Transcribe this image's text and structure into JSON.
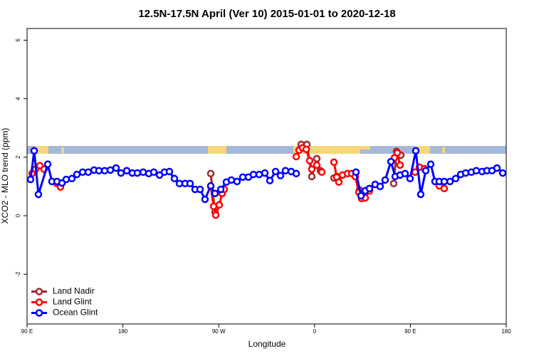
{
  "chart_data": {
    "type": "line",
    "title": "12.5N-17.5N April (Ver 10)   2015-01-01 to 2020-12-18",
    "x_label": "Longitude",
    "y_label": "XCO2 - MLO trend (ppm)",
    "xlim": [
      90,
      540
    ],
    "ylim": [
      -3.7,
      6.4
    ],
    "xticks": [
      {
        "value": 90,
        "label": "90 E"
      },
      180,
      {
        "value": 270,
        "label": "90 W"
      },
      {
        "value": 360,
        "label": "0"
      },
      {
        "value": 450,
        "label": "90 E"
      },
      {
        "value": 540,
        "label": "180"
      }
    ],
    "yticks": [
      -2,
      0,
      2,
      4,
      6
    ],
    "grid": false,
    "legend": "bottomleft",
    "series": [
      {
        "name": "Land Nadir",
        "color": "#a0282d",
        "x": [
          262.5,
          266.5,
          null,
          347.4,
          352.8,
          357.4,
          362.1,
          365.5,
          null,
          378.2,
          380.8,
          null,
          402.2,
          405.6,
          409.6,
          null,
          434.3,
          437.0,
          441.0
        ],
        "values": [
          1.44,
          0.12,
          null,
          2.44,
          2.44,
          1.34,
          1.95,
          1.54,
          null,
          1.29,
          1.34,
          null,
          0.88,
          0.66,
          0.88,
          null,
          1.1,
          2.2,
          2.07
        ]
      },
      {
        "name": "Land Glint",
        "color": "#ff0000",
        "x": [
          94.7,
          98.0,
          102.0,
          106.0,
          null,
          118.1,
          121.4,
          null,
          262.5,
          265.2,
          267.2,
          270.5,
          273.2,
          275.2,
          null,
          342.8,
          345.4,
          348.7,
          352.1,
          355.4,
          357.4,
          362.1,
          366.8,
          null,
          378.2,
          380.8,
          382.8,
          386.2,
          390.9,
          394.9,
          398.2,
          401.6,
          404.2,
          407.6,
          411.6,
          null,
          435.0,
          437.7,
          440.3,
          null,
          454.4,
          458.4,
          463.1,
          null,
          477.1,
          481.8
        ],
        "values": [
          1.44,
          1.59,
          1.71,
          1.59,
          null,
          1.1,
          0.98,
          null,
          1.0,
          0.32,
          0.02,
          0.37,
          0.76,
          0.9,
          null,
          2.02,
          2.24,
          2.32,
          2.27,
          1.88,
          1.59,
          1.73,
          1.49,
          null,
          1.83,
          1.32,
          1.15,
          1.39,
          1.44,
          1.44,
          1.34,
          0.8,
          0.59,
          0.61,
          0.85,
          null,
          1.98,
          2.15,
          1.73,
          null,
          1.49,
          1.66,
          1.61,
          null,
          1.02,
          0.93
        ]
      },
      {
        "name": "Ocean Glint",
        "color": "#0000ff",
        "x": [
          93.3,
          96.7,
          100.7,
          109.4,
          113.4,
          118.1,
          122.8,
          126.8,
          132.1,
          136.8,
          142.2,
          147.5,
          152.9,
          157.5,
          162.9,
          168.2,
          173.6,
          178.2,
          183.6,
          188.9,
          193.6,
          199.0,
          204.3,
          209.0,
          214.4,
          219.0,
          223.7,
          228.4,
          233.1,
          238.4,
          243.1,
          247.8,
          252.5,
          257.1,
          262.5,
          266.5,
          271.9,
          277.2,
          281.9,
          287.2,
          292.6,
          297.9,
          302.6,
          308.0,
          313.3,
          318.0,
          323.4,
          328.0,
          332.7,
          338.1,
          342.8,
          null,
          398.9,
          403.6,
          407.6,
          411.6,
          416.9,
          421.6,
          426.3,
          431.7,
          435.7,
          440.3,
          445.0,
          449.7,
          455.1,
          459.7,
          464.4,
          469.1,
          473.1,
          477.1,
          481.8,
          487.2,
          492.5,
          497.2,
          501.9,
          507.2,
          511.9,
          517.3,
          521.9,
          526.6,
          531.3,
          536.7
        ],
        "values": [
          1.24,
          2.22,
          0.73,
          1.76,
          1.17,
          1.17,
          1.12,
          1.24,
          1.27,
          1.41,
          1.49,
          1.49,
          1.56,
          1.54,
          1.54,
          1.56,
          1.63,
          1.46,
          1.54,
          1.46,
          1.46,
          1.49,
          1.44,
          1.49,
          1.39,
          1.49,
          1.51,
          1.27,
          1.1,
          1.1,
          1.1,
          0.9,
          0.9,
          0.56,
          1.02,
          0.76,
          0.9,
          1.15,
          1.22,
          1.17,
          1.32,
          1.32,
          1.41,
          1.41,
          1.46,
          1.2,
          1.51,
          1.37,
          1.54,
          1.51,
          1.44,
          null,
          1.49,
          0.68,
          0.85,
          0.93,
          1.07,
          1.0,
          1.22,
          1.85,
          1.34,
          1.39,
          1.44,
          1.27,
          2.22,
          0.73,
          1.54,
          1.76,
          1.17,
          1.17,
          1.17,
          1.17,
          1.27,
          1.41,
          1.46,
          1.49,
          1.54,
          1.51,
          1.54,
          1.54,
          1.63,
          1.46
        ]
      }
    ]
  }
}
